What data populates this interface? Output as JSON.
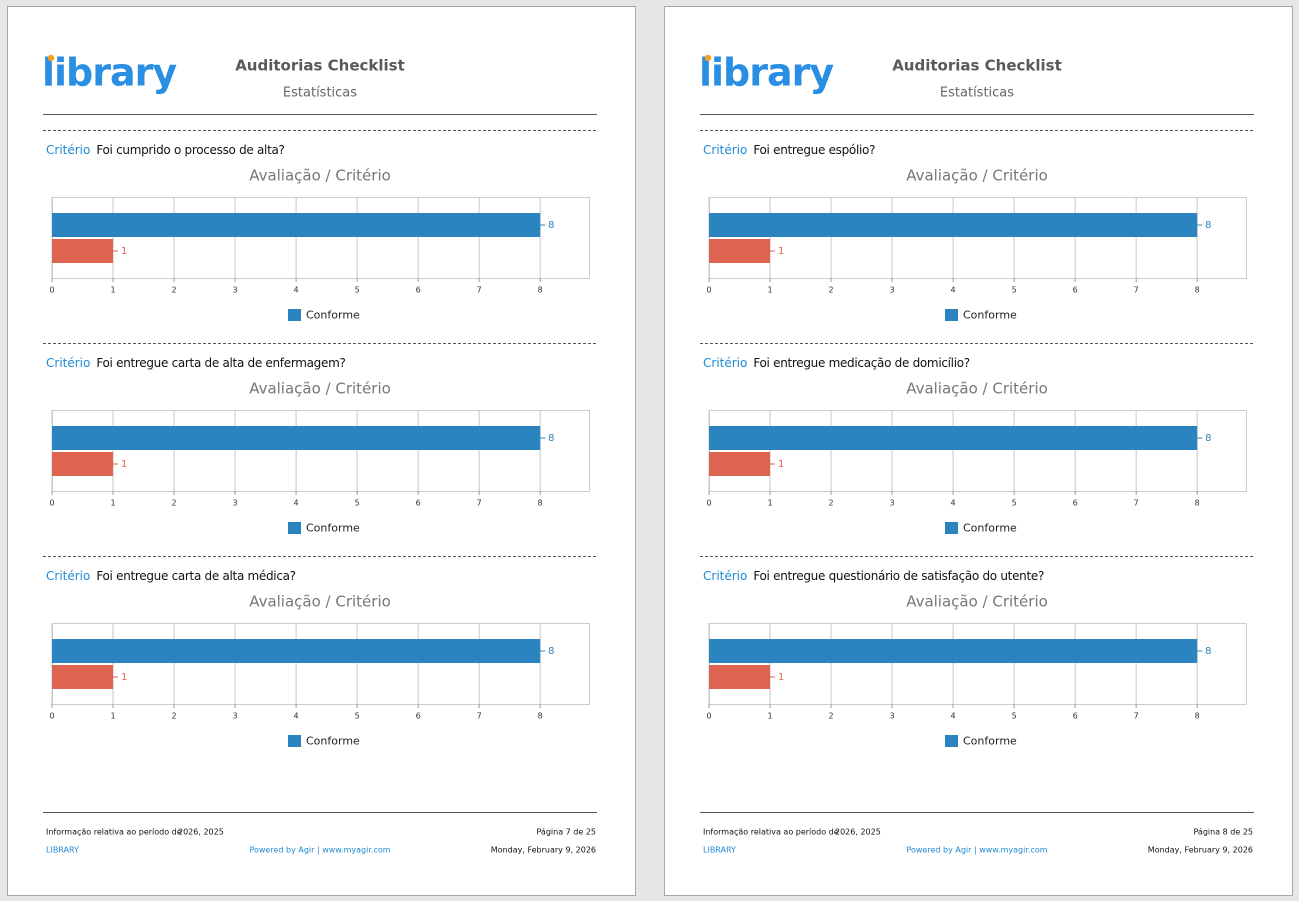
{
  "pages": [
    {
      "header": {
        "logo": "library",
        "title": "Auditorias Checklist",
        "subtitle": "Estatísticas"
      },
      "chart_data": [
        {
          "type": "bar",
          "orientation": "horizontal",
          "criterion_label": "Critério",
          "criterion": "Foi cumprido o processo de alta?",
          "title": "Avaliação / Critério",
          "categories": [
            null,
            null
          ],
          "values": [
            8,
            1
          ],
          "colors": [
            "#2b83bf",
            "#dc6450"
          ],
          "legend": [
            "Conforme"
          ],
          "xlim": [
            0,
            8.8
          ],
          "xticks": [
            0,
            1,
            2,
            3,
            4,
            5,
            6,
            7,
            8
          ],
          "grid": true
        },
        {
          "type": "bar",
          "orientation": "horizontal",
          "criterion_label": "Critério",
          "criterion": "Foi entregue carta de alta de enfermagem?",
          "title": "Avaliação / Critério",
          "categories": [
            null,
            null
          ],
          "values": [
            8,
            1
          ],
          "colors": [
            "#2b83bf",
            "#dc6450"
          ],
          "legend": [
            "Conforme"
          ],
          "xlim": [
            0,
            8.8
          ],
          "xticks": [
            0,
            1,
            2,
            3,
            4,
            5,
            6,
            7,
            8
          ],
          "grid": true
        },
        {
          "type": "bar",
          "orientation": "horizontal",
          "criterion_label": "Critério",
          "criterion": "Foi entregue carta de alta médica?",
          "title": "Avaliação / Critério",
          "categories": [
            null,
            null
          ],
          "values": [
            8,
            1
          ],
          "colors": [
            "#2b83bf",
            "#dc6450"
          ],
          "legend": [
            "Conforme"
          ],
          "xlim": [
            0,
            8.8
          ],
          "xticks": [
            0,
            1,
            2,
            3,
            4,
            5,
            6,
            7,
            8
          ],
          "grid": true
        }
      ],
      "footer": {
        "period_label": "Informação relativa ao período de",
        "period": "2026, 2025",
        "page": "Página 7 de 25",
        "company": "LIBRARY",
        "powered": "Powered by Agir | www.myagir.com",
        "date": "Monday, February 9, 2026"
      }
    },
    {
      "header": {
        "logo": "library",
        "title": "Auditorias Checklist",
        "subtitle": "Estatísticas"
      },
      "chart_data": [
        {
          "type": "bar",
          "orientation": "horizontal",
          "criterion_label": "Critério",
          "criterion": "Foi entregue espólio?",
          "title": "Avaliação / Critério",
          "categories": [
            null,
            null
          ],
          "values": [
            8,
            1
          ],
          "colors": [
            "#2b83bf",
            "#dc6450"
          ],
          "legend": [
            "Conforme"
          ],
          "xlim": [
            0,
            8.8
          ],
          "xticks": [
            0,
            1,
            2,
            3,
            4,
            5,
            6,
            7,
            8
          ],
          "grid": true
        },
        {
          "type": "bar",
          "orientation": "horizontal",
          "criterion_label": "Critério",
          "criterion": "Foi entregue medicação de domicílio?",
          "title": "Avaliação / Critério",
          "categories": [
            null,
            null
          ],
          "values": [
            8,
            1
          ],
          "colors": [
            "#2b83bf",
            "#dc6450"
          ],
          "legend": [
            "Conforme"
          ],
          "xlim": [
            0,
            8.8
          ],
          "xticks": [
            0,
            1,
            2,
            3,
            4,
            5,
            6,
            7,
            8
          ],
          "grid": true
        },
        {
          "type": "bar",
          "orientation": "horizontal",
          "criterion_label": "Critério",
          "criterion": "Foi entregue questionário de satisfação do utente?",
          "title": "Avaliação / Critério",
          "categories": [
            null,
            null
          ],
          "values": [
            8,
            1
          ],
          "colors": [
            "#2b83bf",
            "#dc6450"
          ],
          "legend": [
            "Conforme"
          ],
          "xlim": [
            0,
            8.8
          ],
          "xticks": [
            0,
            1,
            2,
            3,
            4,
            5,
            6,
            7,
            8
          ],
          "grid": true
        }
      ],
      "footer": {
        "period_label": "Informação relativa ao período de",
        "period": "2026, 2025",
        "page": "Página 8 de 25",
        "company": "LIBRARY",
        "powered": "Powered by Agir | www.myagir.com",
        "date": "Monday, February 9, 2026"
      }
    }
  ]
}
